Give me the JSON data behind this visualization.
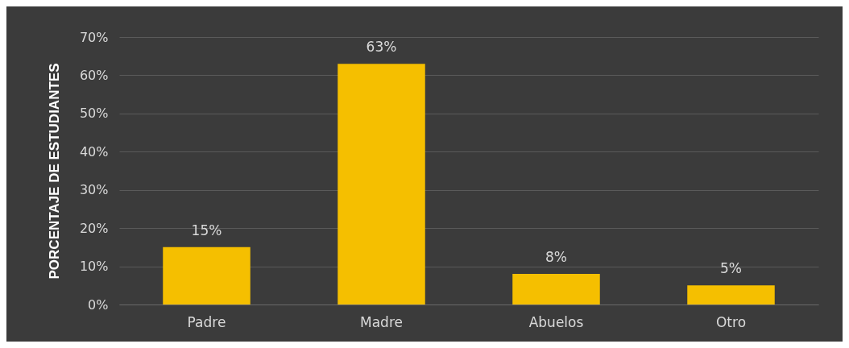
{
  "chart_data": {
    "type": "bar",
    "ylabel": "PORCENTAJE DE ESTUDIANTES",
    "categories": [
      "Padre",
      "Madre",
      "Abuelos",
      "Otro"
    ],
    "values": [
      15,
      63,
      8,
      5
    ],
    "value_labels": [
      "15%",
      "63%",
      "8%",
      "5%"
    ],
    "color": "#f5bf00",
    "ylim": [
      0,
      70
    ],
    "yticks": [
      {
        "value": 0,
        "label": "0%"
      },
      {
        "value": 10,
        "label": "10%"
      },
      {
        "value": 20,
        "label": "20%"
      },
      {
        "value": 30,
        "label": "30%"
      },
      {
        "value": 40,
        "label": "40%"
      },
      {
        "value": 50,
        "label": "50%"
      },
      {
        "value": 60,
        "label": "60%"
      },
      {
        "value": 70,
        "label": "70%"
      }
    ],
    "grid": "y"
  }
}
